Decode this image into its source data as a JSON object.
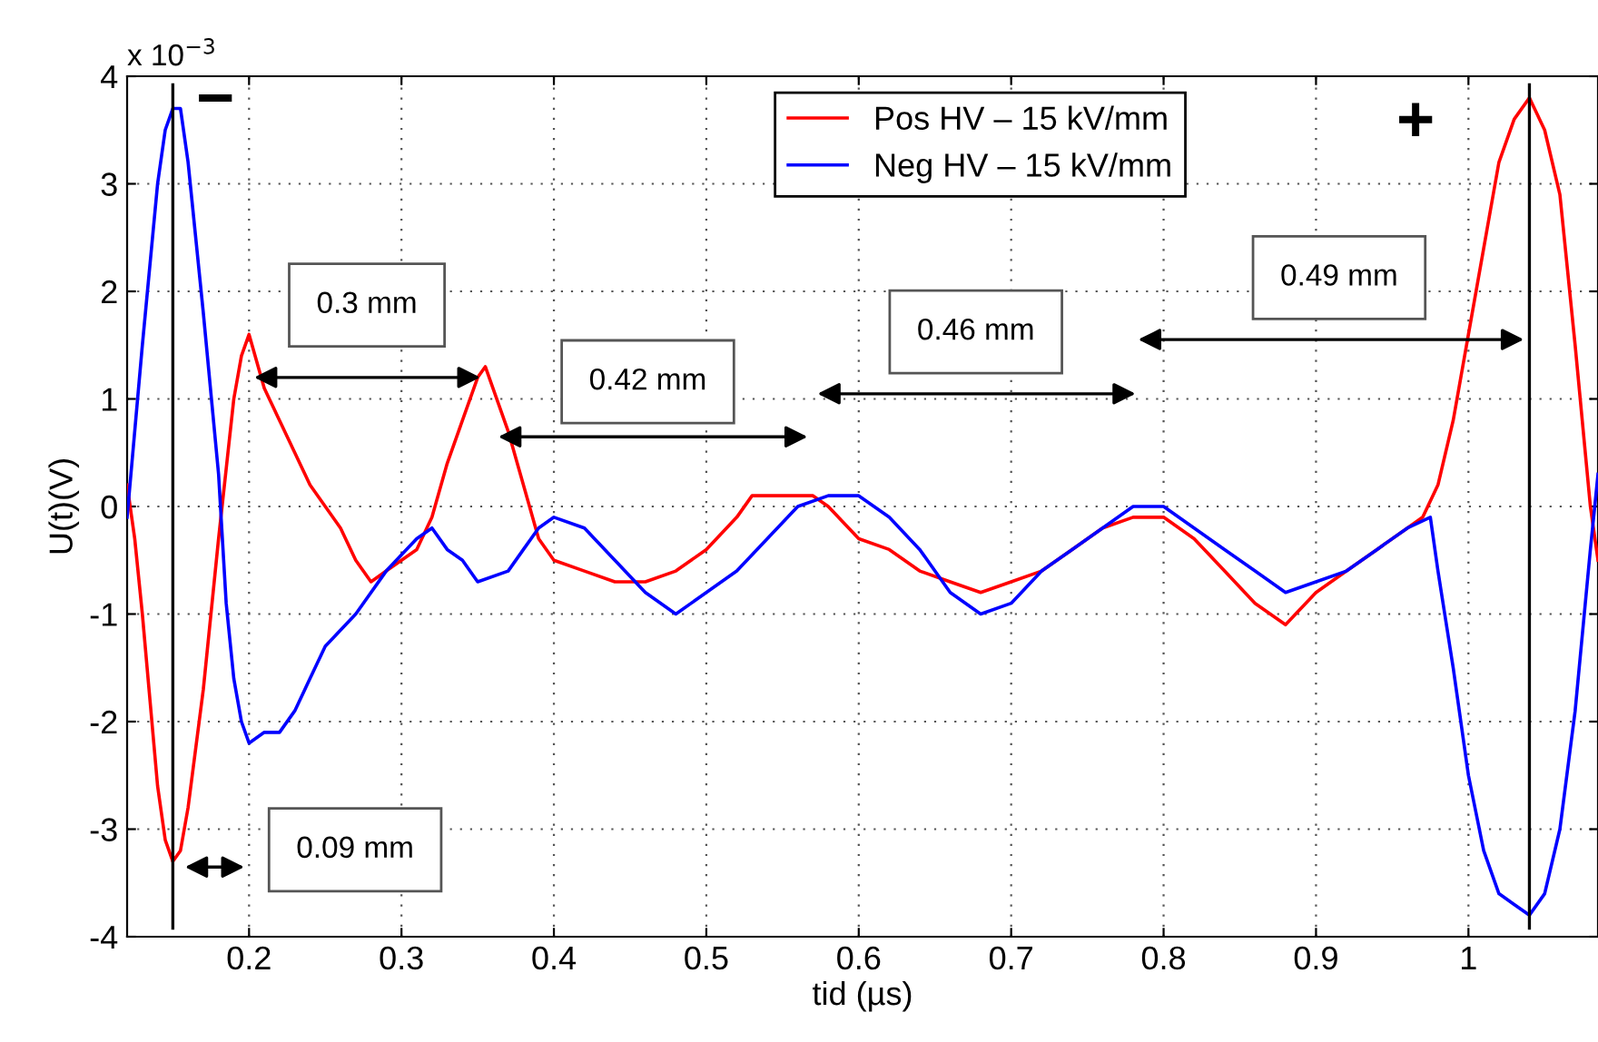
{
  "chart_data": {
    "type": "line",
    "xlabel": "tid (µs)",
    "ylabel": "U(t)(V)",
    "xlim": [
      0.12,
      1.085
    ],
    "xticks": [
      0.2,
      0.3,
      0.4,
      0.5,
      0.6,
      0.7,
      0.8,
      0.9,
      1
    ],
    "ylim": [
      -4,
      4
    ],
    "yticks": [
      -4,
      -3,
      -2,
      -1,
      0,
      1,
      2,
      3,
      4
    ],
    "grid": true,
    "legend": "top",
    "line_style": "solid",
    "marker": "none",
    "series": [
      {
        "name": "Pos HV – 15 kV/mm",
        "color": "#ff0000",
        "x": [
          0.12,
          0.125,
          0.13,
          0.135,
          0.14,
          0.145,
          0.15,
          0.155,
          0.16,
          0.17,
          0.18,
          0.19,
          0.195,
          0.2,
          0.21,
          0.22,
          0.23,
          0.24,
          0.25,
          0.26,
          0.27,
          0.28,
          0.29,
          0.3,
          0.31,
          0.32,
          0.33,
          0.34,
          0.35,
          0.355,
          0.36,
          0.37,
          0.38,
          0.39,
          0.4,
          0.42,
          0.44,
          0.46,
          0.48,
          0.5,
          0.52,
          0.53,
          0.55,
          0.57,
          0.58,
          0.6,
          0.62,
          0.64,
          0.66,
          0.68,
          0.7,
          0.72,
          0.74,
          0.76,
          0.78,
          0.8,
          0.82,
          0.84,
          0.86,
          0.88,
          0.9,
          0.92,
          0.94,
          0.96,
          0.97,
          0.98,
          0.99,
          1.0,
          1.01,
          1.02,
          1.03,
          1.04,
          1.05,
          1.06,
          1.07,
          1.08,
          1.085
        ],
        "values": [
          0.2,
          -0.3,
          -1.0,
          -1.8,
          -2.6,
          -3.1,
          -3.3,
          -3.2,
          -2.8,
          -1.7,
          -0.3,
          1.0,
          1.4,
          1.6,
          1.1,
          0.8,
          0.5,
          0.2,
          0.0,
          -0.2,
          -0.5,
          -0.7,
          -0.6,
          -0.5,
          -0.4,
          -0.1,
          0.4,
          0.8,
          1.2,
          1.3,
          1.1,
          0.7,
          0.2,
          -0.3,
          -0.5,
          -0.6,
          -0.7,
          -0.7,
          -0.6,
          -0.4,
          -0.1,
          0.1,
          0.1,
          0.1,
          0.0,
          -0.3,
          -0.4,
          -0.6,
          -0.7,
          -0.8,
          -0.7,
          -0.6,
          -0.4,
          -0.2,
          -0.1,
          -0.1,
          -0.3,
          -0.6,
          -0.9,
          -1.1,
          -0.8,
          -0.6,
          -0.4,
          -0.2,
          -0.1,
          0.2,
          0.8,
          1.6,
          2.4,
          3.2,
          3.6,
          3.8,
          3.5,
          2.9,
          1.5,
          0.0,
          -0.5
        ]
      },
      {
        "name": "Neg HV – 15 kV/mm",
        "color": "#0000ff",
        "x": [
          0.12,
          0.13,
          0.14,
          0.145,
          0.15,
          0.155,
          0.16,
          0.17,
          0.18,
          0.185,
          0.19,
          0.195,
          0.2,
          0.21,
          0.22,
          0.23,
          0.24,
          0.25,
          0.27,
          0.29,
          0.31,
          0.32,
          0.33,
          0.34,
          0.35,
          0.37,
          0.38,
          0.39,
          0.4,
          0.42,
          0.44,
          0.46,
          0.48,
          0.5,
          0.52,
          0.54,
          0.56,
          0.58,
          0.6,
          0.62,
          0.64,
          0.66,
          0.68,
          0.7,
          0.72,
          0.74,
          0.76,
          0.78,
          0.8,
          0.82,
          0.84,
          0.86,
          0.88,
          0.9,
          0.92,
          0.94,
          0.96,
          0.975,
          0.98,
          0.99,
          1.0,
          1.01,
          1.02,
          1.03,
          1.04,
          1.05,
          1.06,
          1.07,
          1.08,
          1.085
        ],
        "values": [
          -0.1,
          1.5,
          3.0,
          3.5,
          3.7,
          3.7,
          3.2,
          1.8,
          0.3,
          -0.9,
          -1.6,
          -2.0,
          -2.2,
          -2.1,
          -2.1,
          -1.9,
          -1.6,
          -1.3,
          -1.0,
          -0.6,
          -0.3,
          -0.2,
          -0.4,
          -0.5,
          -0.7,
          -0.6,
          -0.4,
          -0.2,
          -0.1,
          -0.2,
          -0.5,
          -0.8,
          -1.0,
          -0.8,
          -0.6,
          -0.3,
          0.0,
          0.1,
          0.1,
          -0.1,
          -0.4,
          -0.8,
          -1.0,
          -0.9,
          -0.6,
          -0.4,
          -0.2,
          0.0,
          0.0,
          -0.2,
          -0.4,
          -0.6,
          -0.8,
          -0.7,
          -0.6,
          -0.4,
          -0.2,
          -0.1,
          -0.6,
          -1.5,
          -2.5,
          -3.2,
          -3.6,
          -3.7,
          -3.8,
          -3.6,
          -3.0,
          -1.9,
          -0.4,
          0.3
        ]
      }
    ],
    "ref_lines": [
      {
        "axis": "x",
        "value": 0.15,
        "color": "#000000"
      },
      {
        "axis": "x",
        "value": 1.04,
        "color": "#000000"
      }
    ],
    "annotations": [
      "x 10$^{−3}$",
      "−",
      "+",
      "0.09 mm",
      "0.3 mm",
      "0.42 mm",
      "0.46 mm",
      "0.49 mm"
    ]
  }
}
